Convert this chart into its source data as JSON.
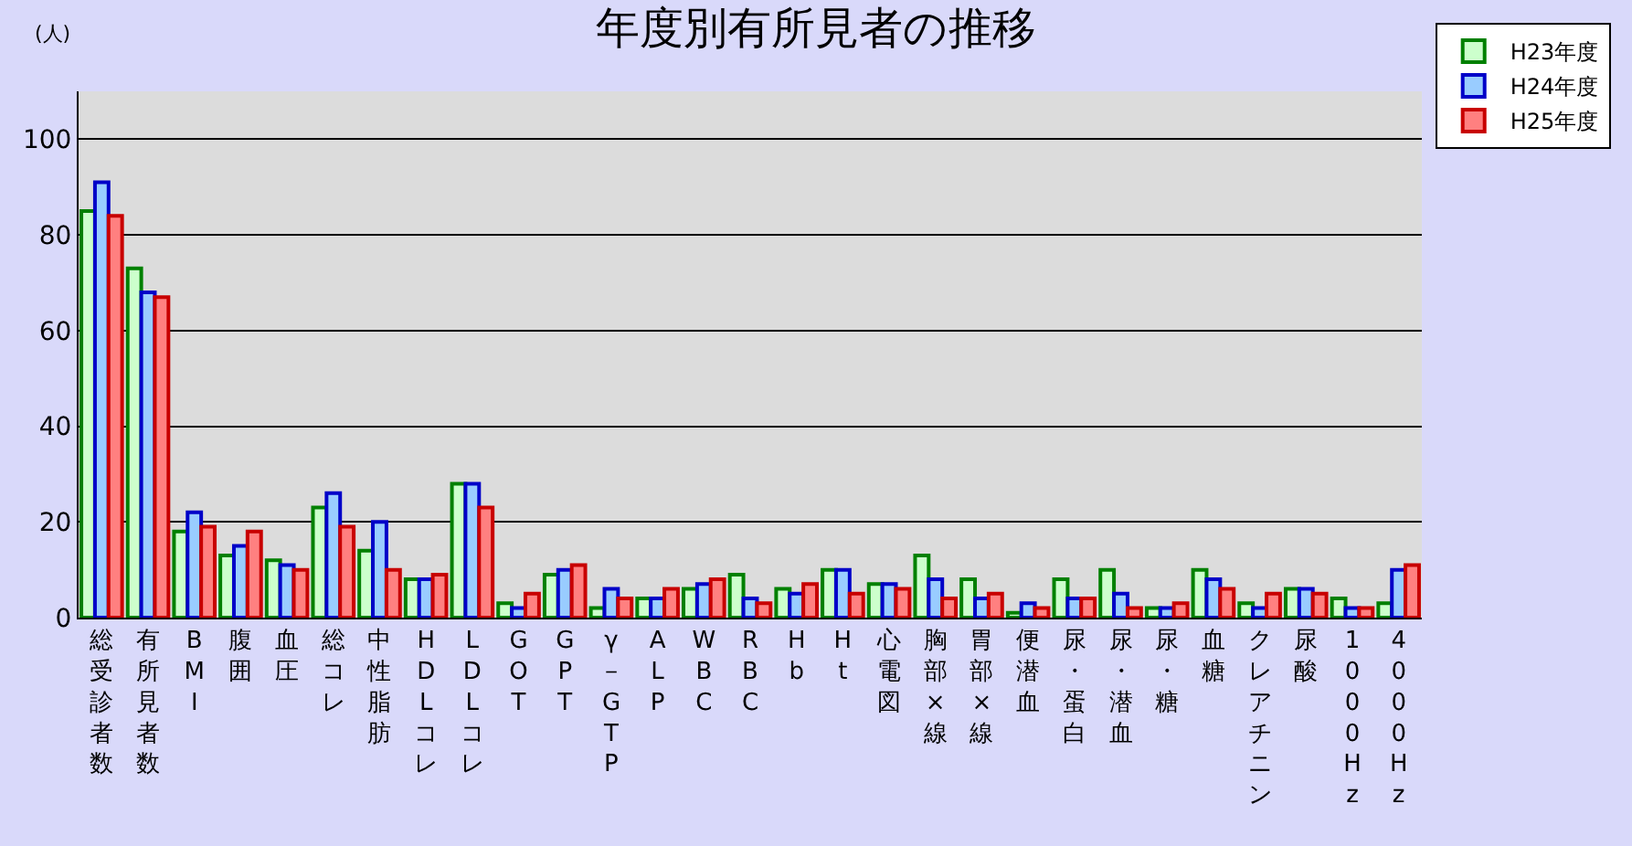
{
  "chart_data": {
    "type": "bar",
    "title": "年度別有所見者の推移",
    "ylabel": "(人)",
    "categories": [
      "総受診者数",
      "有所見者数",
      "BMI",
      "腹囲",
      "血圧",
      "総コレ",
      "中性脂肪",
      "HDLコレ",
      "LDLコレ",
      "GOT",
      "GPT",
      "γ－GTP",
      "ALP",
      "WBC",
      "RBC",
      "Hb",
      "Ht",
      "心電図",
      "胸部×線",
      "胃部×線",
      "便潜血",
      "尿・蛋白",
      "尿・潜血",
      "尿・糖",
      "血糖",
      "クレアチニン",
      "尿酸",
      "1000Hz",
      "4000Hz"
    ],
    "series": [
      {
        "name": "H23年度",
        "color": "#ccffcc",
        "values": [
          85,
          73,
          18,
          13,
          12,
          23,
          14,
          8,
          28,
          3,
          9,
          2,
          4,
          6,
          9,
          6,
          10,
          7,
          13,
          8,
          1,
          8,
          10,
          2,
          10,
          3,
          6,
          4,
          3
        ]
      },
      {
        "name": "H24年度",
        "color": "#99ccff",
        "values": [
          91,
          68,
          22,
          15,
          11,
          26,
          20,
          8,
          28,
          2,
          10,
          6,
          4,
          7,
          4,
          5,
          10,
          7,
          8,
          4,
          3,
          4,
          5,
          2,
          8,
          2,
          6,
          2,
          10
        ]
      },
      {
        "name": "H25年度",
        "color": "#ff8080",
        "values": [
          84,
          67,
          19,
          18,
          10,
          19,
          10,
          9,
          23,
          5,
          11,
          4,
          6,
          8,
          3,
          7,
          5,
          6,
          4,
          5,
          2,
          4,
          2,
          3,
          6,
          5,
          5,
          2,
          11
        ]
      }
    ],
    "ylim": [
      0,
      110
    ],
    "yticks": [
      0,
      20,
      40,
      60,
      80,
      100
    ],
    "grid": "y",
    "legend": "top right"
  }
}
